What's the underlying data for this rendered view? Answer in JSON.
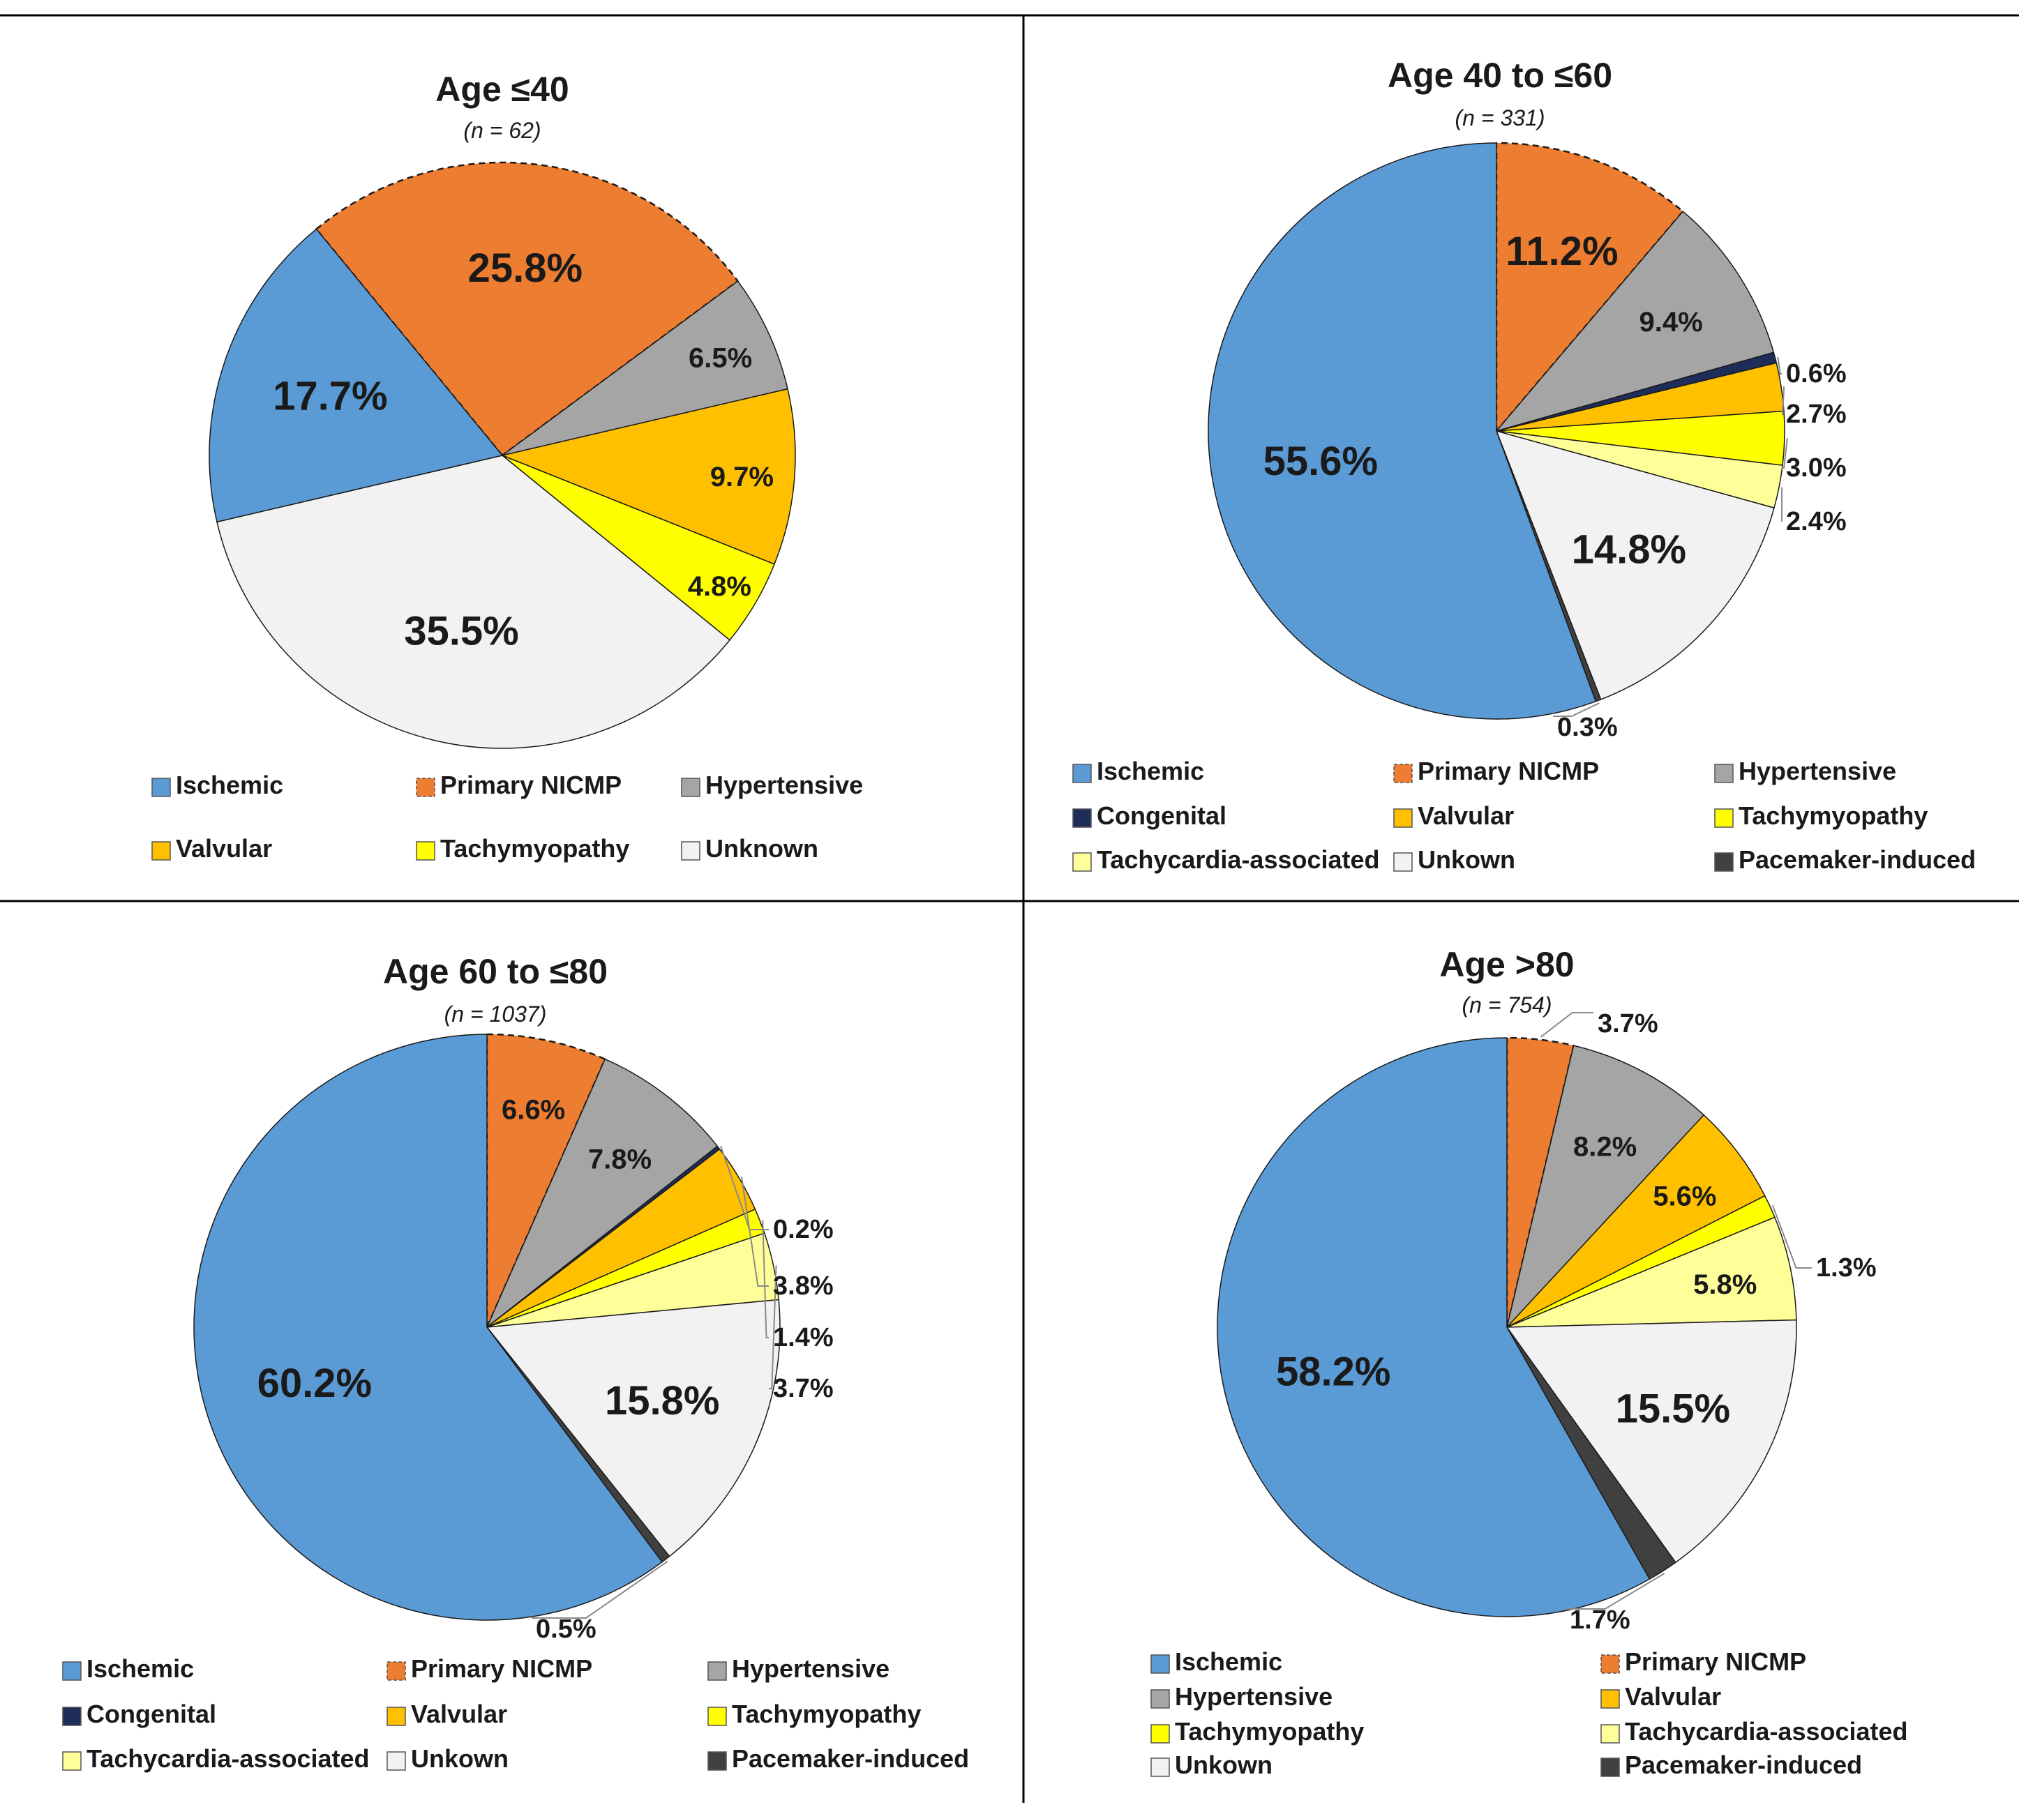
{
  "figure": {
    "colors": {
      "Ischemic": "#5b9bd5",
      "Primary NICMP": "#ed7d31",
      "Hypertensive": "#a5a5a5",
      "Congenital": "#1f2d5a",
      "Valvular": "#ffc000",
      "Tachymyopathy": "#ffff00",
      "Tachycardia-associated": "#ffff99",
      "Unknown": "#f2f2f2",
      "Pacemaker-induced": "#404040"
    }
  },
  "chart_data": [
    {
      "type": "pie",
      "title": "Age ≤40",
      "n_label": "(n = 62)",
      "slices": [
        {
          "category": "Primary NICMP",
          "value": 25.8,
          "label": "25.8%"
        },
        {
          "category": "Hypertensive",
          "value": 6.5,
          "label": "6.5%"
        },
        {
          "category": "Valvular",
          "value": 9.7,
          "label": "9.7%"
        },
        {
          "category": "Tachymyopathy",
          "value": 4.8,
          "label": "4.8%"
        },
        {
          "category": "Unknown",
          "value": 35.5,
          "label": "35.5%"
        },
        {
          "category": "Ischemic",
          "value": 17.7,
          "label": "17.7%"
        }
      ],
      "legend": [
        {
          "category": "Ischemic",
          "label": "Ischemic"
        },
        {
          "category": "Primary NICMP",
          "label": "Primary NICMP"
        },
        {
          "category": "Hypertensive",
          "label": "Hypertensive"
        },
        {
          "category": "Valvular",
          "label": "Valvular"
        },
        {
          "category": "Tachymyopathy",
          "label": "Tachymyopathy"
        },
        {
          "category": "Unknown",
          "label": "Unknown"
        }
      ]
    },
    {
      "type": "pie",
      "title": "Age 40 to ≤60",
      "n_label": "(n = 331)",
      "slices": [
        {
          "category": "Primary NICMP",
          "value": 11.2,
          "label": "11.2%"
        },
        {
          "category": "Hypertensive",
          "value": 9.4,
          "label": "9.4%"
        },
        {
          "category": "Congenital",
          "value": 0.6,
          "label": "0.6%"
        },
        {
          "category": "Valvular",
          "value": 2.7,
          "label": "2.7%"
        },
        {
          "category": "Tachymyopathy",
          "value": 3.0,
          "label": "3.0%"
        },
        {
          "category": "Tachycardia-associated",
          "value": 2.4,
          "label": "2.4%"
        },
        {
          "category": "Unknown",
          "value": 14.8,
          "label": "14.8%"
        },
        {
          "category": "Pacemaker-induced",
          "value": 0.3,
          "label": "0.3%"
        },
        {
          "category": "Ischemic",
          "value": 55.6,
          "label": "55.6%"
        }
      ],
      "legend": [
        {
          "category": "Ischemic",
          "label": "Ischemic"
        },
        {
          "category": "Primary NICMP",
          "label": "Primary NICMP"
        },
        {
          "category": "Hypertensive",
          "label": "Hypertensive"
        },
        {
          "category": "Congenital",
          "label": "Congenital"
        },
        {
          "category": "Valvular",
          "label": "Valvular"
        },
        {
          "category": "Tachymyopathy",
          "label": "Tachymyopathy"
        },
        {
          "category": "Tachycardia-associated",
          "label": "Tachycardia-associated"
        },
        {
          "category": "Unknown",
          "label": "Unkown"
        },
        {
          "category": "Pacemaker-induced",
          "label": "Pacemaker-induced"
        }
      ]
    },
    {
      "type": "pie",
      "title": "Age 60 to ≤80",
      "n_label": "(n = 1037)",
      "slices": [
        {
          "category": "Primary NICMP",
          "value": 6.6,
          "label": "6.6%"
        },
        {
          "category": "Hypertensive",
          "value": 7.8,
          "label": "7.8%"
        },
        {
          "category": "Congenital",
          "value": 0.2,
          "label": "0.2%"
        },
        {
          "category": "Valvular",
          "value": 3.8,
          "label": "3.8%"
        },
        {
          "category": "Tachymyopathy",
          "value": 1.4,
          "label": "1.4%"
        },
        {
          "category": "Tachycardia-associated",
          "value": 3.7,
          "label": "3.7%"
        },
        {
          "category": "Unknown",
          "value": 15.8,
          "label": "15.8%"
        },
        {
          "category": "Pacemaker-induced",
          "value": 0.5,
          "label": "0.5%"
        },
        {
          "category": "Ischemic",
          "value": 60.2,
          "label": "60.2%"
        }
      ],
      "legend": [
        {
          "category": "Ischemic",
          "label": "Ischemic"
        },
        {
          "category": "Primary NICMP",
          "label": "Primary NICMP"
        },
        {
          "category": "Hypertensive",
          "label": "Hypertensive"
        },
        {
          "category": "Congenital",
          "label": "Congenital"
        },
        {
          "category": "Valvular",
          "label": "Valvular"
        },
        {
          "category": "Tachymyopathy",
          "label": "Tachymyopathy"
        },
        {
          "category": "Tachycardia-associated",
          "label": "Tachycardia-associated"
        },
        {
          "category": "Unknown",
          "label": "Unkown"
        },
        {
          "category": "Pacemaker-induced",
          "label": "Pacemaker-induced"
        }
      ]
    },
    {
      "type": "pie",
      "title": "Age >80",
      "n_label": "(n = 754)",
      "slices": [
        {
          "category": "Primary NICMP",
          "value": 3.7,
          "label": "3.7%"
        },
        {
          "category": "Hypertensive",
          "value": 8.2,
          "label": "8.2%"
        },
        {
          "category": "Valvular",
          "value": 5.6,
          "label": "5.6%"
        },
        {
          "category": "Tachymyopathy",
          "value": 1.3,
          "label": "1.3%"
        },
        {
          "category": "Tachycardia-associated",
          "value": 5.8,
          "label": "5.8%"
        },
        {
          "category": "Unknown",
          "value": 15.5,
          "label": "15.5%"
        },
        {
          "category": "Pacemaker-induced",
          "value": 1.7,
          "label": "1.7%"
        },
        {
          "category": "Ischemic",
          "value": 58.2,
          "label": "58.2%"
        }
      ],
      "legend": [
        {
          "category": "Ischemic",
          "label": "Ischemic"
        },
        {
          "category": "Primary NICMP",
          "label": "Primary NICMP"
        },
        {
          "category": "Hypertensive",
          "label": "Hypertensive"
        },
        {
          "category": "Valvular",
          "label": "Valvular"
        },
        {
          "category": "Tachymyopathy",
          "label": "Tachymyopathy"
        },
        {
          "category": "Tachycardia-associated",
          "label": "Tachycardia-associated"
        },
        {
          "category": "Unknown",
          "label": "Unkown"
        },
        {
          "category": "Pacemaker-induced",
          "label": "Pacemaker-induced"
        }
      ]
    }
  ]
}
